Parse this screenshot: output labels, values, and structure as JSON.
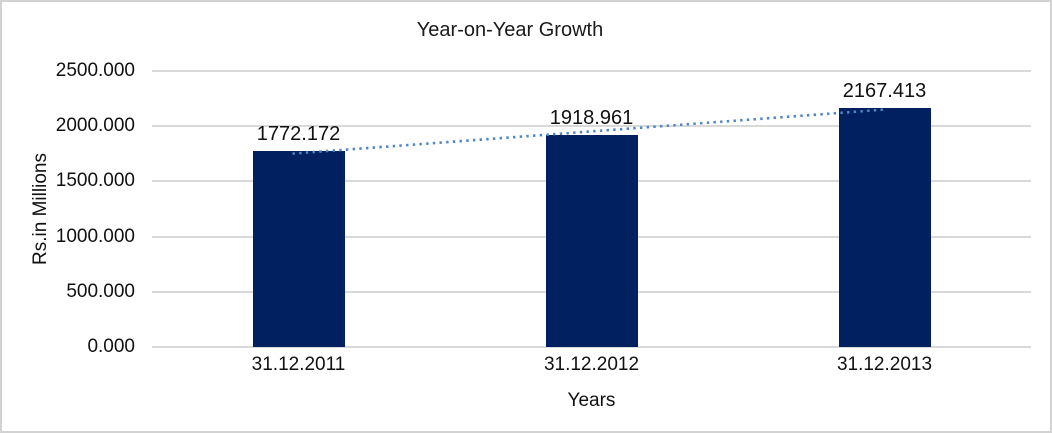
{
  "chart_data": {
    "type": "bar",
    "title": "Year-on-Year Growth",
    "xlabel": "Years",
    "ylabel": "Rs.in Millions",
    "categories": [
      "31.12.2011",
      "31.12.2012",
      "31.12.2013"
    ],
    "values": [
      1772.172,
      1918.961,
      2167.413
    ],
    "data_labels": [
      "1772.172",
      "1918.961",
      "2167.413"
    ],
    "y_tick_labels": [
      "2500.000",
      "2000.000",
      "1500.000",
      "1000.000",
      "500.000",
      "0.000"
    ],
    "ylim": [
      0,
      2500
    ],
    "ytick_interval": 500,
    "grid": true,
    "legend": false,
    "series": [
      {
        "name": "Rs.in Millions",
        "values": [
          1772.172,
          1918.961,
          2167.413
        ]
      }
    ],
    "trendline": {
      "type": "linear",
      "style": "dotted",
      "points": [
        1755.229,
        1952.849,
        2150.47
      ]
    },
    "colors": {
      "bar": "#002060",
      "trendline": "#4f86c4",
      "gridline": "#d9d9d9",
      "text": "#111111",
      "border": "#d2d2d2",
      "background": "#ffffff"
    }
  }
}
